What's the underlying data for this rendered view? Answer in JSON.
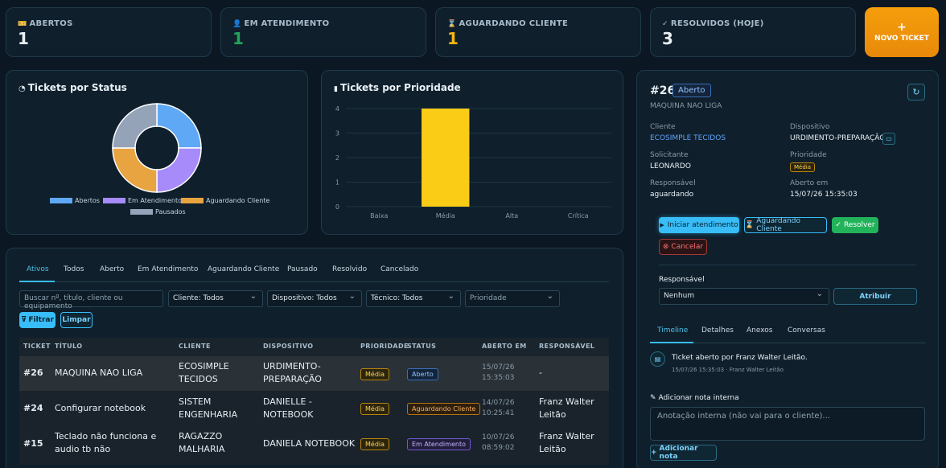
{
  "stats": [
    {
      "label": "ABERTOS",
      "icon": "ticket-icon",
      "glyph": "🎫",
      "value": "1",
      "color": "#e8f0f5"
    },
    {
      "label": "EM ATENDIMENTO",
      "icon": "user-icon",
      "glyph": "👤",
      "value": "1",
      "color": "#22a35a"
    },
    {
      "label": "AGUARDANDO CLIENTE",
      "icon": "hourglass-icon",
      "glyph": "⌛",
      "value": "1",
      "color": "#f5b70a"
    },
    {
      "label": "RESOLVIDOS (HOJE)",
      "icon": "check-circle-icon",
      "glyph": "✓",
      "value": "3",
      "color": "#e8f0f5"
    }
  ],
  "new_ticket": {
    "plus": "+",
    "label": "NOVO TICKET"
  },
  "status_panel": {
    "title": "Tickets por Status"
  },
  "priority_panel": {
    "title": "Tickets por Prioridade"
  },
  "chart_data": [
    {
      "type": "pie",
      "title": "Tickets por Status",
      "categories": [
        "Abertos",
        "Em Atendimento",
        "Aguardando Cliente",
        "Pausados"
      ],
      "values": [
        1,
        1,
        1,
        1
      ],
      "colors": [
        "#5fa8f5",
        "#a78bfa",
        "#e8a440",
        "#94a3b8"
      ],
      "legend": "bottom"
    },
    {
      "type": "bar",
      "title": "Tickets por Prioridade",
      "categories": [
        "Baixa",
        "Média",
        "Alta",
        "Crítica"
      ],
      "values": [
        0,
        4,
        0,
        0
      ],
      "yticks": [
        "0",
        "1",
        "2",
        "3",
        "4"
      ],
      "ylim": [
        0,
        4
      ],
      "color": "#facc15",
      "grid": true
    }
  ],
  "tabs": [
    "Ativos",
    "Todos",
    "Aberto",
    "Em Atendimento",
    "Aguardando Cliente",
    "Pausado",
    "Resolvido",
    "Cancelado"
  ],
  "filters": {
    "search_placeholder": "Buscar nº, título, cliente ou equipamento",
    "cliente": "Cliente: Todos",
    "dispositivo": "Dispositivo: Todos",
    "tecnico": "Técnico: Todos",
    "prioridade_placeholder": "Prioridade",
    "filter_button": "Filtrar",
    "clear_button": "Limpar"
  },
  "table": {
    "headers": [
      "TICKET",
      "TÍTULO",
      "CLIENTE",
      "DISPOSITIVO",
      "PRIORIDADE",
      "STATUS",
      "ABERTO EM",
      "RESPONSÁVEL"
    ],
    "rows": [
      {
        "ticket": "#26",
        "titulo": "MAQUINA NAO LIGA",
        "cliente": "ECOSIMPLE TECIDOS",
        "dispositivo": "URDIMENTO-PREPARAÇÃO",
        "prioridade": "Média",
        "status": "Aberto",
        "aberto_em": "15/07/26 15:35:03",
        "responsavel": "-"
      },
      {
        "ticket": "#24",
        "titulo": "Configurar notebook",
        "cliente": "SISTEM ENGENHARIA",
        "dispositivo": "DANIELLE - NOTEBOOK",
        "prioridade": "Média",
        "status": "Aguardando Cliente",
        "aberto_em": "14/07/26 10:25:41",
        "responsavel": "Franz Walter Leitão"
      },
      {
        "ticket": "#15",
        "titulo": "Teclado não funciona e audio tb não",
        "cliente": "RAGAZZO MALHARIA",
        "dispositivo": "DANIELA NOTEBOOK",
        "prioridade": "Média",
        "status": "Em Atendimento",
        "aberto_em": "10/07/26 08:59:02",
        "responsavel": "Franz Walter Leitão"
      }
    ]
  },
  "detail": {
    "number": "#26",
    "status": "Aberto",
    "title": "MAQUINA NAO LIGA",
    "cliente_label": "Cliente",
    "cliente": "ECOSIMPLE TECIDOS",
    "dispositivo_label": "Dispositivo",
    "dispositivo": "URDIMENTO-PREPARAÇÃO",
    "solicitante_label": "Solicitante",
    "solicitante": "LEONARDO",
    "prioridade_label": "Prioridade",
    "prioridade": "Média",
    "responsavel_label": "Responsável",
    "responsavel": "aguardando",
    "aberto_label": "Aberto em",
    "aberto": "15/07/26 15:35:03",
    "actions": {
      "start": "Iniciar atendimento",
      "waiting": "Aguardando Cliente",
      "resolve": "Resolver",
      "cancel": "Cancelar"
    },
    "assign_label": "Responsável",
    "assign_value": "Nenhum",
    "assign_button": "Atribuir",
    "subtabs": [
      "Timeline",
      "Detalhes",
      "Anexos",
      "Conversas"
    ],
    "timeline_event": "Ticket aberto por Franz Walter Leitão.",
    "timeline_meta": "15/07/26 15:35:03 · Franz Walter Leitão",
    "note_label": "Adicionar nota interna",
    "note_placeholder": "Anotação interna (não vai para o cliente)...",
    "note_button": "Adicionar nota"
  }
}
